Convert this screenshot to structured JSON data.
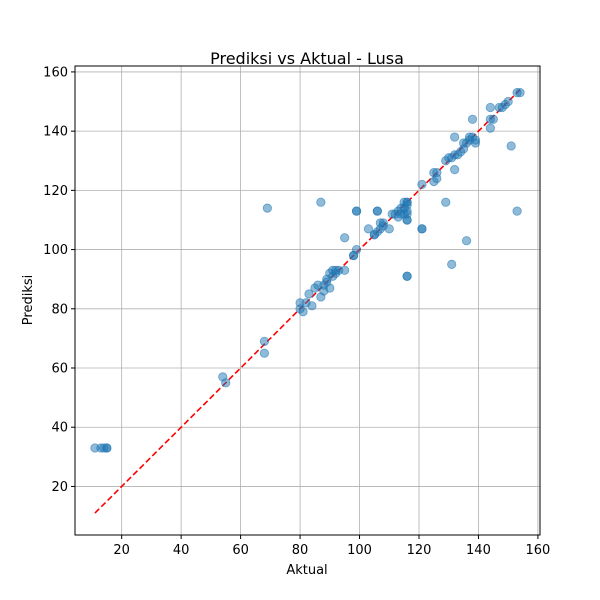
{
  "chart_data": {
    "type": "scatter",
    "title": "Prediksi vs Aktual - Lusa",
    "xlabel": "Aktual",
    "ylabel": "Prediksi",
    "xlim": [
      4.3,
      160.7
    ],
    "ylim": [
      3.6,
      162.0
    ],
    "xticks": [
      20,
      40,
      60,
      80,
      100,
      120,
      140,
      160
    ],
    "yticks": [
      20,
      40,
      60,
      80,
      100,
      120,
      140,
      160
    ],
    "grid": true,
    "colors": {
      "points": "#1f77b4",
      "line": "#ff0000",
      "grid": "#b0b0b0"
    },
    "reference_line": {
      "x": [
        11,
        154
      ],
      "y": [
        11,
        154
      ],
      "style": "dashed"
    },
    "series": [
      {
        "x": [
          11,
          13,
          14,
          15,
          15,
          54,
          55,
          68,
          68,
          69,
          80,
          80,
          81,
          82,
          83,
          84,
          85,
          86,
          87,
          87,
          88,
          88,
          89,
          89,
          90,
          90,
          91,
          91,
          92,
          92,
          93,
          95,
          95,
          98,
          98,
          99,
          99,
          99,
          103,
          105,
          105,
          106,
          106,
          106,
          107,
          107,
          108,
          108,
          110,
          111,
          112,
          113,
          113,
          114,
          114,
          115,
          115,
          115,
          116,
          116,
          116,
          116,
          116,
          116,
          116,
          116,
          116,
          121,
          121,
          121,
          125,
          125,
          126,
          126,
          129,
          129,
          130,
          131,
          131,
          132,
          132,
          132,
          133,
          134,
          135,
          135,
          136,
          136,
          137,
          137,
          138,
          138,
          139,
          139,
          144,
          144,
          144,
          145,
          147,
          148,
          149,
          150,
          151,
          153,
          153,
          154
        ],
        "y": [
          33,
          33,
          33,
          33,
          33,
          57,
          55,
          69,
          65,
          114,
          82,
          80,
          79,
          82,
          85,
          81,
          87,
          88,
          116,
          84,
          86,
          88,
          89,
          90,
          87,
          92,
          93,
          91,
          92,
          93,
          93,
          104,
          93,
          98,
          98,
          113,
          113,
          100,
          107,
          105,
          105,
          106,
          113,
          113,
          107,
          109,
          109,
          108,
          107,
          112,
          112,
          113,
          111,
          114,
          112,
          114,
          116,
          112,
          91,
          91,
          110,
          110,
          112,
          113,
          115,
          116,
          116,
          107,
          107,
          122,
          123,
          126,
          124,
          126,
          116,
          130,
          131,
          95,
          131,
          132,
          138,
          127,
          132,
          133,
          134,
          136,
          103,
          136,
          137,
          138,
          138,
          144,
          136,
          137,
          144,
          141,
          148,
          144,
          148,
          148,
          149,
          150,
          135,
          113,
          153,
          153
        ]
      }
    ]
  }
}
